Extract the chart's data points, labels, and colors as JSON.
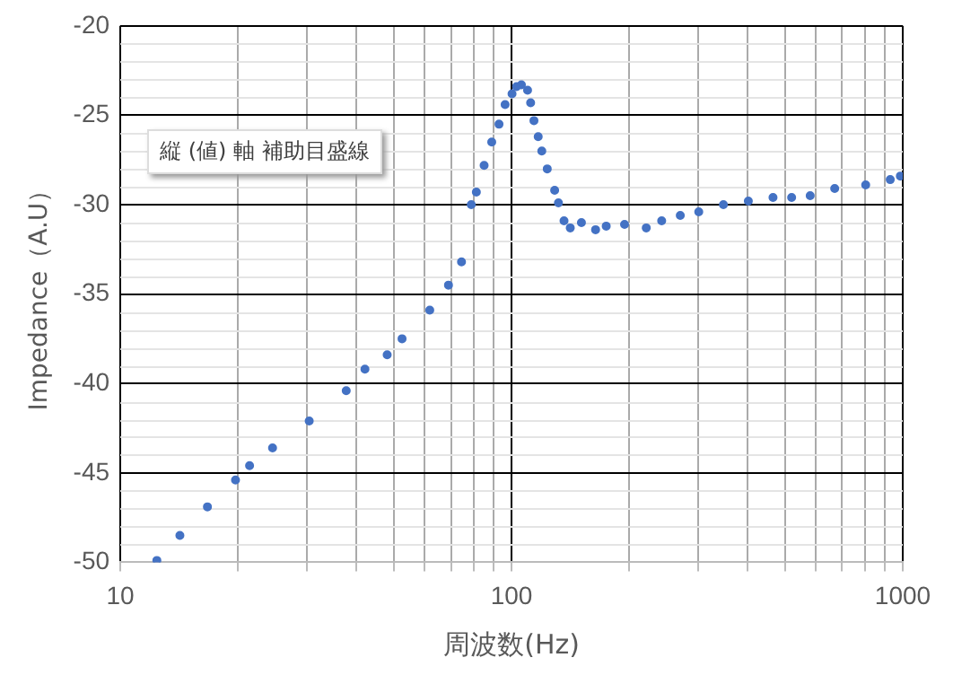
{
  "chart_data": {
    "type": "scatter",
    "xlabel": "周波数(Hz)",
    "ylabel": "Impedance（A.U）",
    "annotations": [
      "縦 (値) 軸 補助目盛線"
    ],
    "log": "x",
    "grid": true,
    "legend": false,
    "marker": "circle",
    "xlim": [
      10,
      1000
    ],
    "ylim": [
      -50,
      -20
    ],
    "xticks": [
      10,
      {
        "value": 20,
        "label": null
      },
      {
        "value": 30,
        "label": null
      },
      {
        "value": 40,
        "label": null
      },
      {
        "value": 50,
        "label": null
      },
      {
        "value": 60,
        "label": null
      },
      {
        "value": 70,
        "label": null
      },
      {
        "value": 80,
        "label": null
      },
      {
        "value": 90,
        "label": null
      },
      100,
      {
        "value": 200,
        "label": null
      },
      {
        "value": 300,
        "label": null
      },
      {
        "value": 400,
        "label": null
      },
      {
        "value": 500,
        "label": null
      },
      {
        "value": 600,
        "label": null
      },
      {
        "value": 700,
        "label": null
      },
      {
        "value": 800,
        "label": null
      },
      {
        "value": 900,
        "label": null
      },
      1000
    ],
    "yticks": [
      -50,
      -45,
      -40,
      -35,
      -30,
      -25,
      -20
    ],
    "series": [
      {
        "color": "#4472c4",
        "x": [
          12.4,
          14.2,
          16.7,
          19.7,
          21.4,
          24.5,
          30.4,
          37.8,
          42.2,
          48.1,
          52.5,
          61.8,
          69.0,
          74.5,
          78.9,
          81.3,
          85.1,
          89.0,
          92.9,
          96.3,
          100.3,
          103,
          106,
          109.9,
          111.9,
          114.1,
          117,
          119.5,
          123.4,
          128.9,
          131.8,
          136.2,
          141.3,
          150.9,
          164,
          174.6,
          194.5,
          221,
          242,
          270,
          301,
          348,
          403,
          466,
          520,
          580,
          670,
          804,
          929,
          986
        ],
        "values": [
          -49.9,
          -48.5,
          -46.9,
          -45.4,
          -44.6,
          -43.6,
          -42.1,
          -40.4,
          -39.2,
          -38.4,
          -37.5,
          -35.9,
          -34.5,
          -33.2,
          -30.0,
          -29.3,
          -27.8,
          -26.5,
          -25.5,
          -24.4,
          -23.8,
          -23.4,
          -23.3,
          -23.6,
          -24.3,
          -25.3,
          -26.2,
          -27.0,
          -28.0,
          -29.2,
          -29.9,
          -30.9,
          -31.3,
          -31.0,
          -31.4,
          -31.2,
          -31.1,
          -31.3,
          -30.9,
          -30.6,
          -30.4,
          -30.0,
          -29.8,
          -29.6,
          -29.6,
          -29.5,
          -29.1,
          -28.9,
          -28.6,
          -28.4
        ]
      }
    ]
  }
}
